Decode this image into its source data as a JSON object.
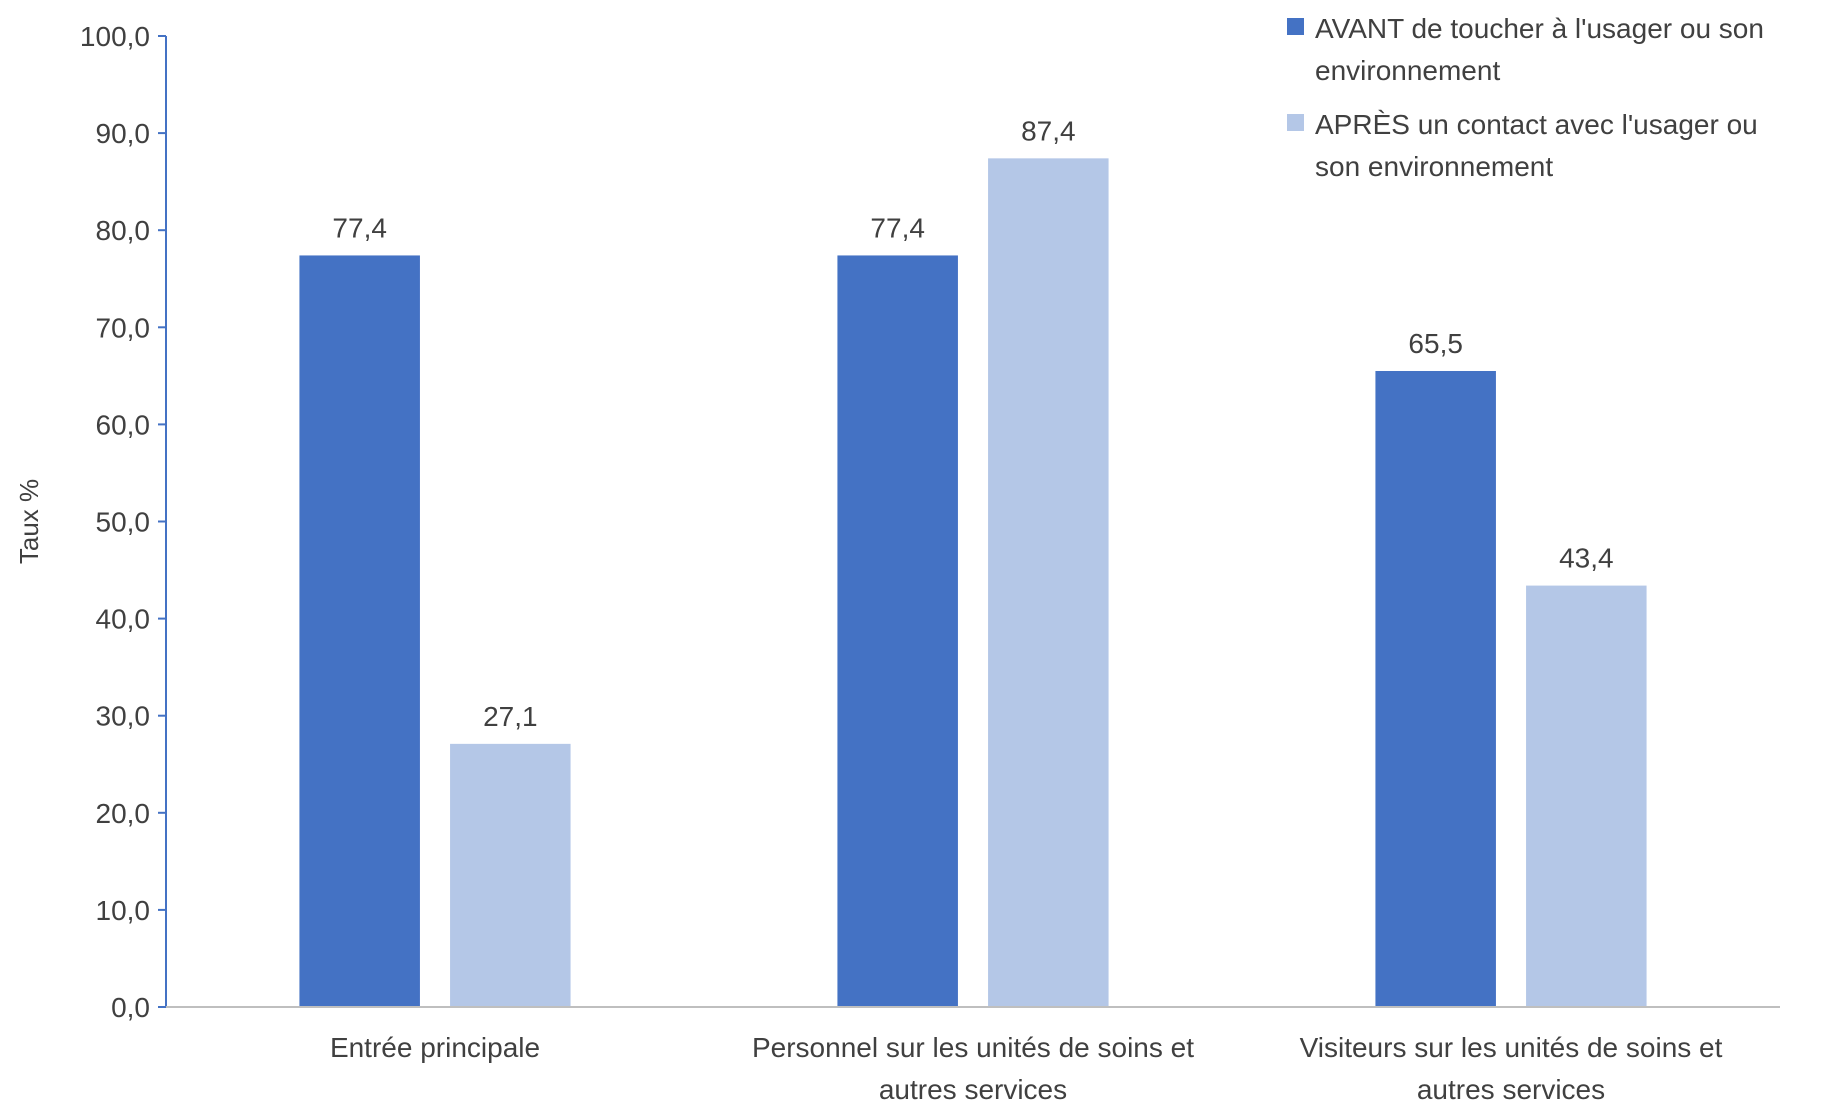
{
  "chart_data": {
    "type": "bar",
    "title": "",
    "xlabel": "",
    "ylabel": "Taux %",
    "ylim": [
      0,
      100
    ],
    "ytick_step": 10,
    "grid": false,
    "legend_position": "top-right",
    "categories": [
      [
        "Entrée principale"
      ],
      [
        "Personnel sur les unités de soins et",
        "autres services"
      ],
      [
        "Visiteurs sur les unités de soins et",
        "autres services"
      ]
    ],
    "series": [
      {
        "name": "AVANT de toucher à l'usager ou son environnement",
        "legend_lines": [
          "AVANT de toucher à l'usager ou son",
          "environnement"
        ],
        "color": "#4472C4",
        "values": [
          77.4,
          77.4,
          65.5
        ]
      },
      {
        "name": "APRÈS un contact avec l'usager ou son environnement",
        "legend_lines": [
          "APRÈS un contact avec l'usager ou",
          "son environnement"
        ],
        "color": "#B4C7E7",
        "values": [
          27.1,
          87.4,
          43.4
        ]
      }
    ]
  }
}
